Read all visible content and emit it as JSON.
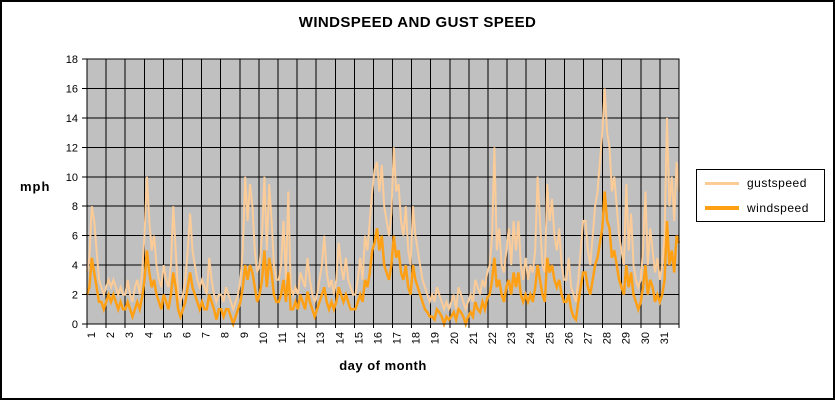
{
  "chart_data": {
    "type": "line",
    "title": "WINDSPEED AND GUST SPEED",
    "xlabel": "day of month",
    "ylabel": "mph",
    "ylim": [
      0,
      18
    ],
    "yticks": [
      0,
      2,
      4,
      6,
      8,
      10,
      12,
      14,
      16,
      18
    ],
    "categories": [
      "1",
      "2",
      "3",
      "4",
      "5",
      "6",
      "7",
      "8",
      "9",
      "10",
      "11",
      "12",
      "13",
      "14",
      "15",
      "16",
      "17",
      "18",
      "19",
      "20",
      "21",
      "22",
      "23",
      "24",
      "25",
      "26",
      "27",
      "28",
      "29",
      "30",
      "31"
    ],
    "samples_per_day": 8,
    "grid": true,
    "plot_bg": "#C0C0C0",
    "gridline_color": "#000000",
    "legend_position": "right",
    "series": [
      {
        "name": "gustspeed",
        "color": "#FBCB98",
        "stroke_width": 2,
        "values": [
          3.5,
          4.5,
          8,
          7,
          5,
          3,
          2.5,
          2,
          2.5,
          3,
          2.5,
          3,
          2.5,
          2,
          2.5,
          2,
          2,
          3,
          2,
          1.5,
          2.5,
          3,
          2,
          3.5,
          6,
          10,
          7,
          5,
          6,
          4,
          3,
          2.5,
          4,
          3,
          2.5,
          4,
          8,
          5,
          2,
          1.5,
          2,
          3,
          5,
          7.5,
          5,
          4,
          3,
          2.5,
          3,
          2.5,
          2,
          4.5,
          3,
          2,
          1.5,
          2,
          2,
          1.5,
          2.5,
          2,
          1.5,
          1,
          1.5,
          2,
          3,
          5,
          10,
          7,
          9.5,
          8,
          5,
          3.5,
          4,
          6,
          10,
          5,
          9.5,
          7,
          4,
          3,
          3,
          4,
          7,
          3,
          9,
          2.5,
          2,
          2.5,
          2,
          3.5,
          3,
          2.5,
          4.5,
          3,
          2,
          1.5,
          2,
          3,
          4,
          6,
          3.5,
          2.5,
          3,
          2,
          3,
          5.5,
          4,
          3,
          4.5,
          3,
          2.5,
          2,
          2,
          3,
          4.5,
          3,
          6,
          5,
          7,
          9,
          10.5,
          11,
          9,
          10.8,
          8,
          7,
          6,
          7.5,
          12,
          9,
          9.5,
          7,
          6,
          8,
          5,
          4,
          8,
          6,
          5,
          4,
          3,
          2.5,
          2,
          1.5,
          2,
          1.5,
          2.5,
          2,
          1.5,
          1,
          1.5,
          1,
          1.5,
          2,
          1,
          2.5,
          2,
          1.5,
          1,
          1.5,
          2,
          1.5,
          3,
          2.5,
          2,
          3,
          2.5,
          3.5,
          4,
          6,
          12,
          5,
          6.5,
          4,
          3.5,
          5,
          6.5,
          4,
          7,
          5,
          7,
          4,
          3,
          4.5,
          3,
          4,
          3.5,
          5,
          10,
          7,
          4,
          3.5,
          9.5,
          7,
          8.5,
          6,
          5,
          6.5,
          4,
          3,
          3,
          4.5,
          2.5,
          2,
          1.5,
          3,
          5,
          7,
          7,
          5,
          4,
          6,
          8,
          9,
          11,
          13,
          16,
          13,
          12,
          9,
          10,
          8,
          6,
          5,
          4,
          9.5,
          5,
          7.5,
          4,
          3,
          2.5,
          3,
          5,
          9,
          4,
          6.5,
          5,
          3.5,
          4.5,
          3,
          4,
          6,
          14,
          8,
          10,
          7,
          11,
          9
        ]
      },
      {
        "name": "windspeed",
        "color": "#FFA014",
        "stroke_width": 2.5,
        "values": [
          2,
          2.5,
          4.5,
          3.5,
          2.5,
          1.5,
          1.5,
          1,
          1.5,
          2,
          1.5,
          2,
          1.5,
          1,
          1.5,
          1,
          1,
          1.5,
          1,
          0.5,
          1,
          1.5,
          1,
          1.8,
          3,
          5,
          3.5,
          2.5,
          3,
          2,
          1.5,
          1,
          2,
          1.5,
          1,
          2,
          3.5,
          2.5,
          1,
          0.5,
          1,
          1.5,
          2.5,
          3.5,
          2.5,
          2,
          1.5,
          1,
          1.5,
          1,
          1,
          2,
          1.5,
          1,
          0.3,
          1,
          1,
          0.5,
          1,
          1,
          0.5,
          0,
          0.5,
          1,
          1.5,
          2.5,
          4,
          3,
          4,
          3.5,
          2.5,
          1.5,
          2,
          3,
          5,
          2.5,
          4.5,
          3.5,
          2,
          1.5,
          1.5,
          2,
          3,
          1.5,
          3.5,
          1,
          1,
          1.5,
          1,
          2,
          1.5,
          1,
          2.2,
          1.5,
          1,
          0.5,
          1,
          1.5,
          2,
          2.5,
          1.5,
          1,
          1.5,
          1,
          1.5,
          2.5,
          2,
          1.5,
          2,
          1.5,
          1,
          1,
          1,
          1.5,
          2,
          1.5,
          3,
          2.5,
          3.5,
          5,
          5.5,
          6.5,
          5,
          6,
          4,
          3.5,
          3,
          4,
          6,
          4.5,
          5,
          3.5,
          3,
          4,
          2.5,
          2,
          4,
          3,
          2.5,
          2,
          1.5,
          1,
          0.8,
          0.5,
          0.5,
          0.3,
          1,
          0.8,
          0.5,
          0,
          0.5,
          0.3,
          0.5,
          0.8,
          0.3,
          1,
          0.8,
          0.5,
          0,
          0.5,
          0.8,
          0.5,
          1.5,
          1,
          0.8,
          1.5,
          1,
          1.8,
          2,
          3,
          4.5,
          2.5,
          3,
          2,
          1.5,
          2.5,
          3,
          2,
          3.5,
          2.5,
          3.5,
          2,
          1.5,
          2,
          1.5,
          2,
          1.5,
          2.5,
          4,
          3,
          2,
          1.5,
          4.5,
          3.5,
          4,
          3,
          2.5,
          3,
          2,
          1.5,
          1.5,
          2,
          1,
          0.5,
          0.3,
          1.5,
          2.5,
          3.5,
          3.5,
          2.5,
          2,
          3,
          4,
          4.5,
          5.5,
          6.5,
          9,
          7,
          6.5,
          4.5,
          5,
          4,
          3,
          2.5,
          2,
          4,
          2.5,
          3.5,
          2,
          1.5,
          1,
          1.5,
          2.5,
          4,
          2,
          3,
          2.5,
          1.5,
          2,
          1.5,
          2,
          3,
          7,
          4,
          5,
          3.5,
          6,
          5.5
        ]
      }
    ]
  }
}
